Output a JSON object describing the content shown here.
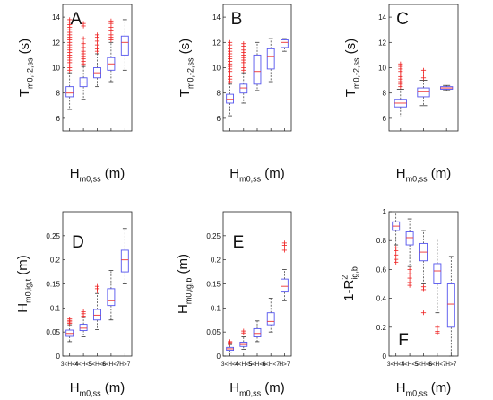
{
  "style": {
    "box_color": "#5555ee",
    "median_color": "#ee3333",
    "outlier_color": "#ee2222",
    "whisker_color": "#333333",
    "axis_color": "#222222"
  },
  "chart_data": [
    {
      "id": "A",
      "type": "box",
      "panel_letter": "A",
      "xlabel_main": "H",
      "xlabel_sub": "m0,ss",
      "xlabel_unit": "(m)",
      "ylabel_main": "T",
      "ylabel_sub": "m0,-2,ss",
      "ylabel_sup": "",
      "ylabel_unit": "(s)",
      "ylim": [
        5,
        15
      ],
      "yticks": [
        {
          "v": 6,
          "label": "6"
        },
        {
          "v": 8,
          "label": "8"
        },
        {
          "v": 10,
          "label": "10"
        },
        {
          "v": 12,
          "label": "12"
        },
        {
          "v": 14,
          "label": "14"
        }
      ],
      "categories": [
        "",
        "",
        "",
        "",
        ""
      ],
      "boxes": [
        {
          "whislo": 6.7,
          "q1": 7.7,
          "med": 8.0,
          "q3": 8.5,
          "whishi": 9.6,
          "fliers": [
            9.8,
            10.0,
            10.2,
            10.4,
            10.6,
            10.8,
            11.0,
            11.2,
            11.4,
            11.6,
            11.8,
            12.0,
            12.2,
            12.4,
            12.6,
            12.8,
            13.0,
            13.2,
            13.4,
            13.6,
            13.8
          ]
        },
        {
          "whislo": 7.5,
          "q1": 8.5,
          "med": 8.8,
          "q3": 9.2,
          "whishi": 10.1,
          "fliers": [
            10.3,
            10.5,
            10.7,
            10.9,
            11.1,
            11.3,
            11.6,
            11.9,
            12.3,
            13.3,
            13.5
          ]
        },
        {
          "whislo": 8.5,
          "q1": 9.2,
          "med": 9.6,
          "q3": 10.0,
          "whishi": 11.1,
          "fliers": [
            11.3,
            11.5,
            11.8,
            12.1,
            12.4,
            12.6
          ]
        },
        {
          "whislo": 8.9,
          "q1": 9.8,
          "med": 10.3,
          "q3": 10.8,
          "whishi": 12.0,
          "fliers": [
            12.2,
            12.4,
            12.6,
            12.9,
            13.2,
            13.5,
            13.7
          ]
        },
        {
          "whislo": 9.8,
          "q1": 11.0,
          "med": 12.0,
          "q3": 12.5,
          "whishi": 13.8,
          "fliers": []
        }
      ]
    },
    {
      "id": "B",
      "type": "box",
      "panel_letter": "B",
      "xlabel_main": "H",
      "xlabel_sub": "m0,ss",
      "xlabel_unit": "(m)",
      "ylabel_main": "T",
      "ylabel_sub": "m0,-2,ss",
      "ylabel_sup": "",
      "ylabel_unit": "(s)",
      "ylim": [
        5,
        15
      ],
      "yticks": [
        {
          "v": 6,
          "label": "6"
        },
        {
          "v": 8,
          "label": "8"
        },
        {
          "v": 10,
          "label": "10"
        },
        {
          "v": 12,
          "label": "12"
        },
        {
          "v": 14,
          "label": "14"
        }
      ],
      "categories": [
        "",
        "",
        "",
        "",
        ""
      ],
      "boxes": [
        {
          "whislo": 6.2,
          "q1": 7.2,
          "med": 7.5,
          "q3": 7.9,
          "whishi": 8.7,
          "fliers": [
            8.9,
            9.1,
            9.3,
            9.5,
            9.7,
            9.9,
            10.1,
            10.3,
            10.5,
            10.7,
            10.9,
            11.1,
            11.3,
            11.5,
            11.8,
            12.0
          ]
        },
        {
          "whislo": 7.2,
          "q1": 8.0,
          "med": 8.4,
          "q3": 8.7,
          "whishi": 9.6,
          "fliers": [
            9.8,
            10.0,
            10.2,
            10.4,
            10.6,
            10.8,
            11.0,
            11.2,
            11.4,
            11.7,
            11.9
          ]
        },
        {
          "whislo": 8.2,
          "q1": 8.7,
          "med": 9.7,
          "q3": 11.0,
          "whishi": 12.0,
          "fliers": []
        },
        {
          "whislo": 8.9,
          "q1": 9.9,
          "med": 10.9,
          "q3": 11.5,
          "whishi": 12.3,
          "fliers": []
        },
        {
          "whislo": 11.3,
          "q1": 11.6,
          "med": 12.0,
          "q3": 12.2,
          "whishi": 12.3,
          "fliers": []
        }
      ]
    },
    {
      "id": "C",
      "type": "box",
      "panel_letter": "C",
      "xlabel_main": "H",
      "xlabel_sub": "m0,ss",
      "xlabel_unit": "(m)",
      "ylabel_main": "T",
      "ylabel_sub": "m0,-2,ss",
      "ylabel_sup": "",
      "ylabel_unit": "(s)",
      "ylim": [
        5,
        15
      ],
      "yticks": [
        {
          "v": 6,
          "label": "6"
        },
        {
          "v": 8,
          "label": "8"
        },
        {
          "v": 10,
          "label": "10"
        },
        {
          "v": 12,
          "label": "12"
        },
        {
          "v": 14,
          "label": "14"
        }
      ],
      "categories": [
        "",
        "",
        ""
      ],
      "boxes": [
        {
          "whislo": 6.1,
          "q1": 6.9,
          "med": 7.2,
          "q3": 7.5,
          "whishi": 8.3,
          "fliers": [
            8.5,
            8.7,
            8.9,
            9.1,
            9.3,
            9.5,
            9.7,
            9.9,
            10.1,
            10.3
          ]
        },
        {
          "whislo": 7.0,
          "q1": 7.7,
          "med": 8.1,
          "q3": 8.4,
          "whishi": 9.0,
          "fliers": [
            9.2,
            9.5,
            9.8
          ]
        },
        {
          "whislo": 8.2,
          "q1": 8.3,
          "med": 8.4,
          "q3": 8.5,
          "whishi": 8.6,
          "fliers": []
        }
      ]
    },
    {
      "id": "D",
      "type": "box",
      "panel_letter": "D",
      "xlabel_main": "H",
      "xlabel_sub": "m0,ss",
      "xlabel_unit": "(m)",
      "ylabel_main": "H",
      "ylabel_sub": "m0,ig,t",
      "ylabel_sup": "",
      "ylabel_unit": "(m)",
      "ylim": [
        0,
        0.3
      ],
      "yticks": [
        {
          "v": 0,
          "label": "0"
        },
        {
          "v": 0.05,
          "label": "0.05"
        },
        {
          "v": 0.1,
          "label": "0.1"
        },
        {
          "v": 0.15,
          "label": "0.15"
        },
        {
          "v": 0.2,
          "label": "0.2"
        },
        {
          "v": 0.25,
          "label": "0.25"
        }
      ],
      "categories": [
        "3<H<4",
        "4<H<5",
        "5<H<6",
        "6<H<7",
        "H>7"
      ],
      "boxes": [
        {
          "whislo": 0.03,
          "q1": 0.041,
          "med": 0.047,
          "q3": 0.054,
          "whishi": 0.065,
          "fliers": [
            0.068,
            0.071,
            0.074,
            0.077
          ]
        },
        {
          "whislo": 0.04,
          "q1": 0.053,
          "med": 0.058,
          "q3": 0.066,
          "whishi": 0.08,
          "fliers": [
            0.083,
            0.088,
            0.092
          ]
        },
        {
          "whislo": 0.055,
          "q1": 0.075,
          "med": 0.085,
          "q3": 0.097,
          "whishi": 0.13,
          "fliers": [
            0.135,
            0.14,
            0.145
          ]
        },
        {
          "whislo": 0.075,
          "q1": 0.105,
          "med": 0.115,
          "q3": 0.14,
          "whishi": 0.178,
          "fliers": []
        },
        {
          "whislo": 0.15,
          "q1": 0.175,
          "med": 0.2,
          "q3": 0.22,
          "whishi": 0.265,
          "fliers": []
        }
      ]
    },
    {
      "id": "E",
      "type": "box",
      "panel_letter": "E",
      "xlabel_main": "H",
      "xlabel_sub": "m0,ss",
      "xlabel_unit": "(m)",
      "ylabel_main": "H",
      "ylabel_sub": "m0,ig,b",
      "ylabel_sup": "",
      "ylabel_unit": "(m)",
      "ylim": [
        0,
        0.3
      ],
      "yticks": [
        {
          "v": 0,
          "label": "0"
        },
        {
          "v": 0.05,
          "label": "0.05"
        },
        {
          "v": 0.1,
          "label": "0.1"
        },
        {
          "v": 0.15,
          "label": "0.15"
        },
        {
          "v": 0.2,
          "label": "0.2"
        },
        {
          "v": 0.25,
          "label": "0.25"
        }
      ],
      "categories": [
        "3<H<4",
        "4<H<5",
        "5<H<6",
        "6<H<7",
        "H>7"
      ],
      "boxes": [
        {
          "whislo": 0.008,
          "q1": 0.012,
          "med": 0.015,
          "q3": 0.018,
          "whishi": 0.024,
          "fliers": [
            0.026,
            0.028,
            0.03
          ]
        },
        {
          "whislo": 0.014,
          "q1": 0.02,
          "med": 0.024,
          "q3": 0.029,
          "whishi": 0.04,
          "fliers": [
            0.048,
            0.052
          ]
        },
        {
          "whislo": 0.03,
          "q1": 0.04,
          "med": 0.047,
          "q3": 0.057,
          "whishi": 0.073,
          "fliers": []
        },
        {
          "whislo": 0.05,
          "q1": 0.065,
          "med": 0.072,
          "q3": 0.09,
          "whishi": 0.12,
          "fliers": []
        },
        {
          "whislo": 0.115,
          "q1": 0.133,
          "med": 0.145,
          "q3": 0.16,
          "whishi": 0.18,
          "fliers": [
            0.22,
            0.23,
            0.235
          ]
        }
      ]
    },
    {
      "id": "F",
      "type": "box",
      "panel_letter": "F",
      "xlabel_main": "H",
      "xlabel_sub": "m0,ss",
      "xlabel_unit": "(m)",
      "ylabel_main": "1-R",
      "ylabel_sub": "ig,b",
      "ylabel_sup": "2",
      "ylabel_unit": "",
      "ylim": [
        0,
        1
      ],
      "yticks": [
        {
          "v": 0,
          "label": "0"
        },
        {
          "v": 0.2,
          "label": "0.2"
        },
        {
          "v": 0.4,
          "label": "0.4"
        },
        {
          "v": 0.6,
          "label": "0.6"
        },
        {
          "v": 0.8,
          "label": "0.8"
        },
        {
          "v": 1,
          "label": "1"
        }
      ],
      "categories": [
        "3<H<4",
        "4<H<5",
        "5<H<6",
        "6<H<7",
        "H>7"
      ],
      "boxes": [
        {
          "whislo": 0.77,
          "q1": 0.87,
          "med": 0.9,
          "q3": 0.93,
          "whishi": 0.99,
          "fliers": [
            0.75,
            0.73,
            0.7,
            0.67,
            0.65
          ]
        },
        {
          "whislo": 0.62,
          "q1": 0.77,
          "med": 0.82,
          "q3": 0.86,
          "whishi": 0.95,
          "fliers": [
            0.6,
            0.57,
            0.54,
            0.51,
            0.49
          ]
        },
        {
          "whislo": 0.5,
          "q1": 0.66,
          "med": 0.72,
          "q3": 0.78,
          "whishi": 0.87,
          "fliers": [
            0.48,
            0.46,
            0.3
          ]
        },
        {
          "whislo": 0.3,
          "q1": 0.5,
          "med": 0.59,
          "q3": 0.64,
          "whishi": 0.81,
          "fliers": [
            0.2,
            0.17,
            0.16
          ]
        },
        {
          "whislo": 0.0,
          "q1": 0.2,
          "med": 0.36,
          "q3": 0.5,
          "whishi": 0.69,
          "fliers": []
        }
      ]
    }
  ]
}
